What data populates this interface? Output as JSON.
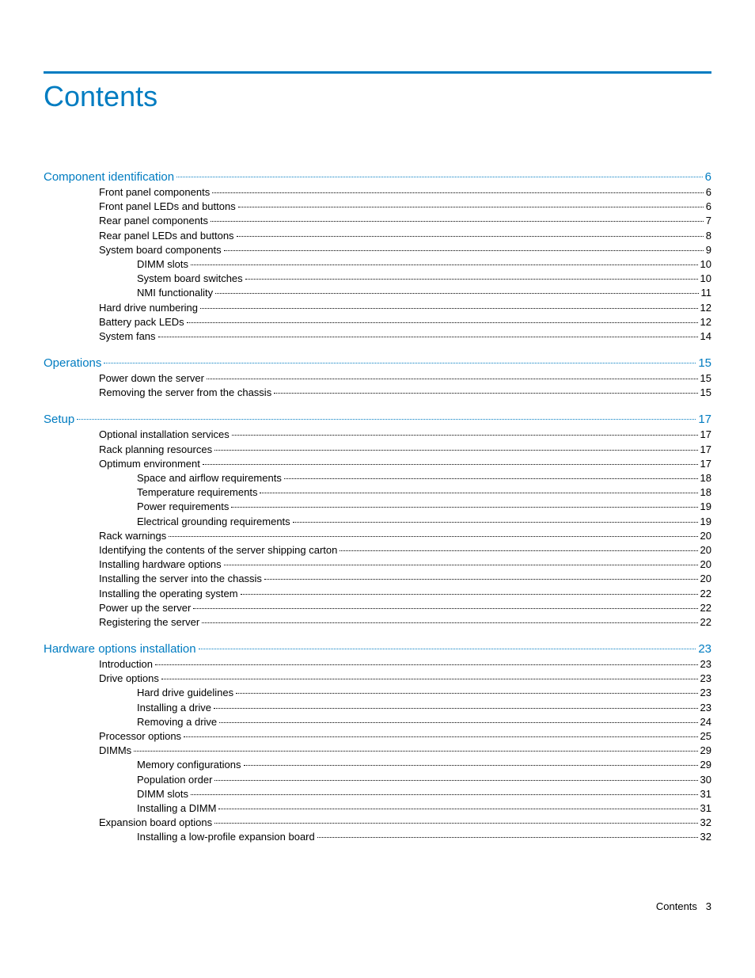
{
  "colors": {
    "accent": "#007cc1",
    "rule": "#007cc1",
    "section_text": "#007cc1",
    "body_text": "#000000",
    "entry_dots": "#000000",
    "background": "#ffffff"
  },
  "typography": {
    "title_fontsize_pt": 28,
    "section_fontsize_pt": 12,
    "entry_fontsize_pt": 10,
    "font_family": "Futura-like / Arial"
  },
  "title": "Contents",
  "footer": {
    "label": "Contents",
    "page": "3"
  },
  "sections": [
    {
      "label": "Component identification",
      "page": "6",
      "entries": [
        {
          "label": "Front panel components",
          "page": "6",
          "level": 1
        },
        {
          "label": "Front panel LEDs and buttons",
          "page": "6",
          "level": 1
        },
        {
          "label": "Rear panel components",
          "page": "7",
          "level": 1
        },
        {
          "label": "Rear panel LEDs and buttons",
          "page": "8",
          "level": 1
        },
        {
          "label": "System board components",
          "page": "9",
          "level": 1
        },
        {
          "label": "DIMM slots",
          "page": "10",
          "level": 2
        },
        {
          "label": "System board switches",
          "page": "10",
          "level": 2
        },
        {
          "label": "NMI functionality",
          "page": "11",
          "level": 2
        },
        {
          "label": "Hard drive numbering",
          "page": "12",
          "level": 1
        },
        {
          "label": "Battery pack LEDs",
          "page": "12",
          "level": 1
        },
        {
          "label": "System fans",
          "page": "14",
          "level": 1
        }
      ]
    },
    {
      "label": "Operations",
      "page": "15",
      "entries": [
        {
          "label": "Power down the server",
          "page": "15",
          "level": 1
        },
        {
          "label": "Removing the server from the chassis",
          "page": "15",
          "level": 1
        }
      ]
    },
    {
      "label": "Setup",
      "page": "17",
      "entries": [
        {
          "label": "Optional installation services",
          "page": "17",
          "level": 1
        },
        {
          "label": "Rack planning resources",
          "page": "17",
          "level": 1
        },
        {
          "label": "Optimum environment",
          "page": "17",
          "level": 1
        },
        {
          "label": "Space and airflow requirements",
          "page": "18",
          "level": 2
        },
        {
          "label": "Temperature requirements",
          "page": "18",
          "level": 2
        },
        {
          "label": "Power requirements",
          "page": "19",
          "level": 2
        },
        {
          "label": "Electrical grounding requirements",
          "page": "19",
          "level": 2
        },
        {
          "label": "Rack warnings",
          "page": "20",
          "level": 1
        },
        {
          "label": "Identifying the contents of the server shipping carton",
          "page": "20",
          "level": 1
        },
        {
          "label": "Installing hardware options",
          "page": "20",
          "level": 1
        },
        {
          "label": "Installing the server into the chassis",
          "page": "20",
          "level": 1
        },
        {
          "label": "Installing the operating system",
          "page": "22",
          "level": 1
        },
        {
          "label": "Power up the server",
          "page": "22",
          "level": 1
        },
        {
          "label": "Registering the server",
          "page": "22",
          "level": 1
        }
      ]
    },
    {
      "label": "Hardware options installation",
      "page": "23",
      "entries": [
        {
          "label": "Introduction",
          "page": "23",
          "level": 1
        },
        {
          "label": "Drive options",
          "page": "23",
          "level": 1
        },
        {
          "label": "Hard drive guidelines",
          "page": "23",
          "level": 2
        },
        {
          "label": "Installing a drive",
          "page": "23",
          "level": 2
        },
        {
          "label": "Removing a drive",
          "page": "24",
          "level": 2
        },
        {
          "label": "Processor options",
          "page": "25",
          "level": 1
        },
        {
          "label": "DIMMs",
          "page": "29",
          "level": 1
        },
        {
          "label": "Memory configurations",
          "page": "29",
          "level": 2
        },
        {
          "label": "Population order",
          "page": "30",
          "level": 2
        },
        {
          "label": "DIMM slots",
          "page": "31",
          "level": 2
        },
        {
          "label": "Installing a DIMM",
          "page": "31",
          "level": 2
        },
        {
          "label": "Expansion board options",
          "page": "32",
          "level": 1
        },
        {
          "label": "Installing a low-profile expansion board",
          "page": "32",
          "level": 2
        }
      ]
    }
  ]
}
